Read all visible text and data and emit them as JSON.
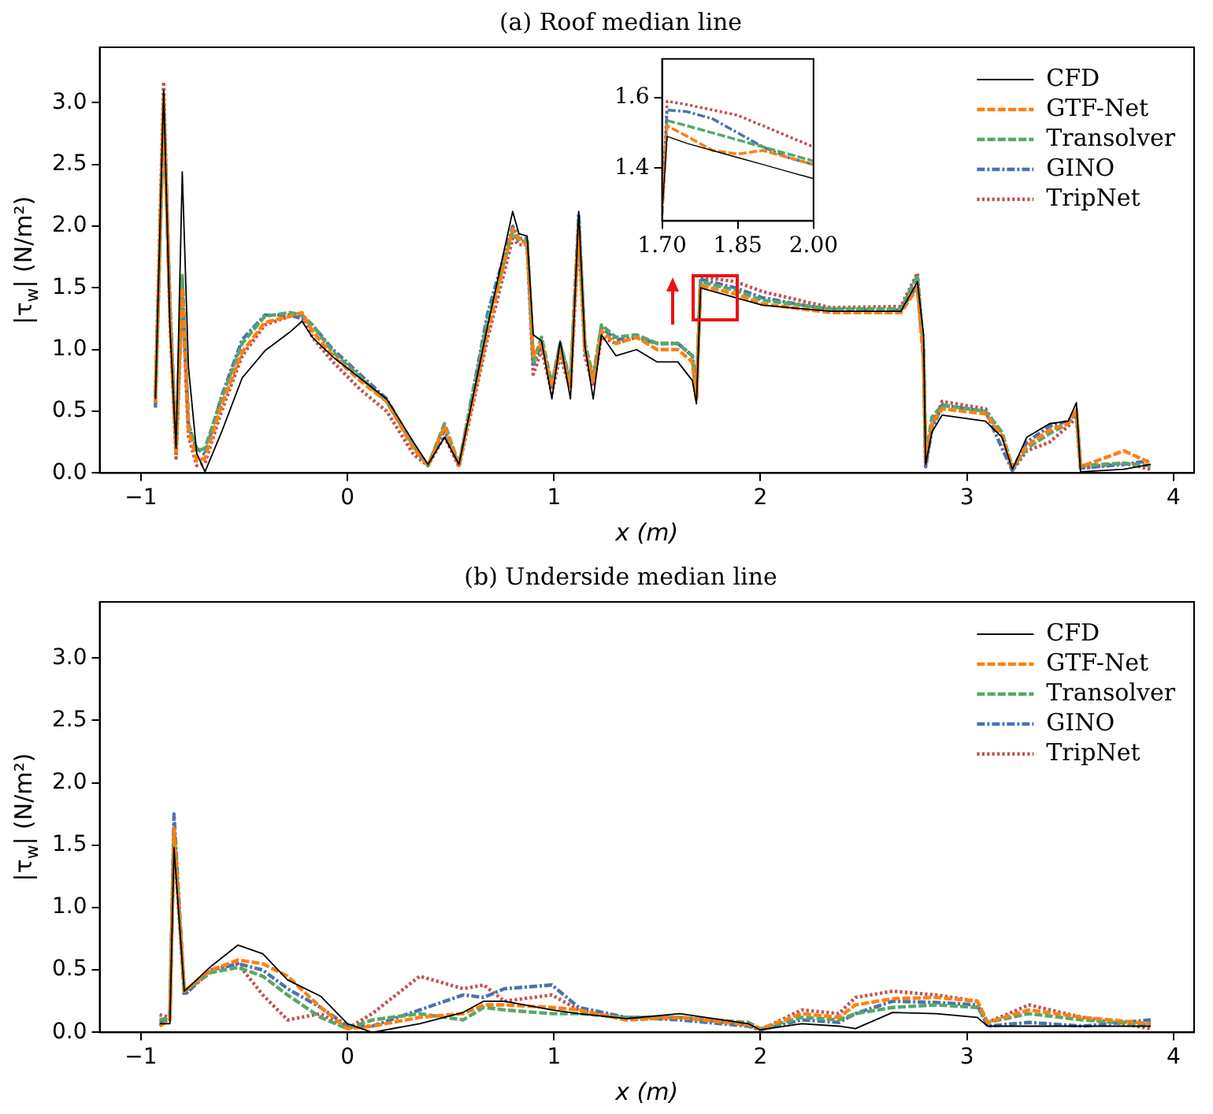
{
  "chart_data": [
    {
      "type": "line",
      "title": "(a) Roof median line",
      "xlabel": "x (m)",
      "ylabel": "|τ$_{w}$| (N/m²)",
      "legend": "top right",
      "xlim": [
        -1.2,
        4.1
      ],
      "ylim": [
        0,
        3.45
      ],
      "xticks": [
        {
          "value": -1,
          "label": "−1"
        },
        0,
        1,
        2,
        3,
        4
      ],
      "yticks": [
        {
          "value": 0,
          "label": "0.0"
        },
        0.5,
        {
          "value": 1,
          "label": "1.0"
        },
        1.5,
        {
          "value": 2,
          "label": "2.0"
        },
        2.5,
        {
          "value": 3,
          "label": "3.0"
        }
      ],
      "x": [
        -0.93,
        -0.89,
        -0.86,
        -0.83,
        -0.8,
        -0.77,
        -0.73,
        -0.69,
        -0.61,
        -0.51,
        -0.4,
        -0.28,
        -0.22,
        -0.17,
        -0.07,
        0.06,
        0.19,
        0.32,
        0.39,
        0.47,
        0.54,
        0.68,
        0.8,
        0.83,
        0.87,
        0.9,
        0.94,
        0.99,
        1.03,
        1.08,
        1.12,
        1.15,
        1.19,
        1.23,
        1.3,
        1.4,
        1.5,
        1.6,
        1.67,
        1.69,
        1.71,
        1.88,
        2.01,
        2.34,
        2.68,
        2.76,
        2.79,
        2.8,
        2.83,
        2.88,
        3.09,
        3.17,
        3.22,
        3.29,
        3.4,
        3.49,
        3.53,
        3.55,
        3.76,
        3.89
      ],
      "series": [
        {
          "name": "CFD",
          "color": "#000000",
          "line_style": "solid",
          "values": [
            0.6,
            3.1,
            1.2,
            0.2,
            2.44,
            0.86,
            0.16,
            0.01,
            0.33,
            0.77,
            0.99,
            1.14,
            1.23,
            1.1,
            0.94,
            0.77,
            0.6,
            0.25,
            0.07,
            0.29,
            0.07,
            1.2,
            2.12,
            1.94,
            1.92,
            1.12,
            1.07,
            0.6,
            1.07,
            0.6,
            2.12,
            1.03,
            0.6,
            1.12,
            0.95,
            1.0,
            0.9,
            0.9,
            0.75,
            0.56,
            1.5,
            1.42,
            1.36,
            1.31,
            1.31,
            1.55,
            1.12,
            0.07,
            0.33,
            0.47,
            0.42,
            0.29,
            0.03,
            0.29,
            0.4,
            0.42,
            0.57,
            0.01,
            0.03,
            0.07
          ]
        },
        {
          "name": "GTF-Net",
          "color": "#ff7f0e",
          "line_style": "dashed",
          "values": [
            0.57,
            3.05,
            1.3,
            0.15,
            1.5,
            0.35,
            0.1,
            0.12,
            0.55,
            0.98,
            1.22,
            1.27,
            1.3,
            1.15,
            0.95,
            0.75,
            0.58,
            0.2,
            0.06,
            0.38,
            0.06,
            1.15,
            1.98,
            1.9,
            1.85,
            0.95,
            1.05,
            0.7,
            1.0,
            0.7,
            2.0,
            1.0,
            0.75,
            1.15,
            1.05,
            1.1,
            1.0,
            1.0,
            0.9,
            0.6,
            1.52,
            1.45,
            1.37,
            1.3,
            1.3,
            1.5,
            0.9,
            0.1,
            0.4,
            0.52,
            0.48,
            0.3,
            0.05,
            0.22,
            0.35,
            0.4,
            0.52,
            0.05,
            0.18,
            0.08
          ]
        },
        {
          "name": "Transolver",
          "color": "#55a868",
          "line_style": "dashed",
          "values": [
            0.62,
            2.9,
            1.4,
            0.2,
            1.6,
            0.4,
            0.18,
            0.2,
            0.6,
            1.05,
            1.27,
            1.3,
            1.28,
            1.2,
            0.98,
            0.78,
            0.58,
            0.22,
            0.06,
            0.4,
            0.07,
            1.25,
            1.95,
            1.88,
            1.88,
            0.9,
            1.1,
            0.72,
            1.05,
            0.75,
            2.05,
            1.05,
            0.78,
            1.2,
            1.1,
            1.12,
            1.05,
            1.05,
            0.95,
            0.65,
            1.55,
            1.48,
            1.4,
            1.33,
            1.33,
            1.6,
            1.0,
            0.12,
            0.45,
            0.55,
            0.5,
            0.33,
            0.04,
            0.2,
            0.32,
            0.4,
            0.5,
            0.06,
            0.08,
            0.06
          ]
        },
        {
          "name": "GINO",
          "color": "#4c72b0",
          "line_style": "dashdot",
          "values": [
            0.53,
            3.0,
            1.35,
            0.18,
            1.55,
            0.38,
            0.2,
            0.15,
            0.62,
            1.08,
            1.28,
            1.28,
            1.25,
            1.2,
            1.0,
            0.8,
            0.6,
            0.22,
            0.06,
            0.35,
            0.06,
            1.3,
            2.0,
            1.9,
            1.9,
            0.88,
            1.05,
            0.7,
            1.05,
            0.72,
            2.1,
            1.0,
            0.75,
            1.18,
            1.08,
            1.1,
            1.05,
            1.05,
            0.95,
            0.62,
            1.57,
            1.5,
            1.42,
            1.32,
            1.32,
            1.52,
            0.95,
            0.05,
            0.35,
            0.55,
            0.5,
            0.2,
            0.02,
            0.25,
            0.38,
            0.42,
            0.5,
            0.04,
            0.07,
            0.1
          ]
        },
        {
          "name": "TripNet",
          "color": "#c44e52",
          "line_style": "dotted",
          "values": [
            0.65,
            3.17,
            1.25,
            0.12,
            1.45,
            0.3,
            0.06,
            0.08,
            0.5,
            0.95,
            1.2,
            1.27,
            1.28,
            1.1,
            0.9,
            0.68,
            0.5,
            0.15,
            0.06,
            0.3,
            0.05,
            1.1,
            1.9,
            1.85,
            1.85,
            0.8,
            1.0,
            0.65,
            0.95,
            0.68,
            1.95,
            0.95,
            0.7,
            1.1,
            1.05,
            1.1,
            1.05,
            1.05,
            0.95,
            0.6,
            1.59,
            1.55,
            1.47,
            1.34,
            1.35,
            1.62,
            1.0,
            0.06,
            0.38,
            0.58,
            0.52,
            0.3,
            0.02,
            0.18,
            0.25,
            0.38,
            0.45,
            0.04,
            0.08,
            0.03
          ]
        }
      ]
    },
    {
      "type": "line",
      "xlim": [
        1.7,
        2.0
      ],
      "ylim": [
        1.25,
        1.71
      ],
      "xticks": [
        {
          "value": 1.7,
          "label": "1.70"
        },
        1.85,
        {
          "value": 2,
          "label": "2.00"
        }
      ],
      "yticks": [
        1.4,
        1.6
      ],
      "x": [
        1.7,
        1.71,
        1.75,
        1.8,
        1.85,
        1.9,
        1.95,
        2.0
      ],
      "series": [
        {
          "color": "#000000",
          "line_style": "solid",
          "values": [
            1.27,
            1.49,
            1.47,
            1.45,
            1.43,
            1.41,
            1.39,
            1.37
          ]
        },
        {
          "color": "#ff7f0e",
          "line_style": "dashed",
          "values": [
            1.27,
            1.52,
            1.49,
            1.45,
            1.44,
            1.45,
            1.43,
            1.41
          ]
        },
        {
          "color": "#55a868",
          "line_style": "dashed",
          "values": [
            1.27,
            1.535,
            1.52,
            1.5,
            1.48,
            1.46,
            1.44,
            1.42
          ]
        },
        {
          "color": "#4c72b0",
          "line_style": "dashdot",
          "values": [
            1.27,
            1.565,
            1.56,
            1.54,
            1.5,
            1.46,
            1.43,
            1.41
          ]
        },
        {
          "color": "#c44e52",
          "line_style": "dotted",
          "values": [
            1.27,
            1.59,
            1.58,
            1.565,
            1.55,
            1.52,
            1.49,
            1.46
          ]
        }
      ]
    },
    {
      "type": "line",
      "title": "(b) Underside median line",
      "xlabel": "x (m)",
      "ylabel": "|τ$_{w}$| (N/m²)",
      "legend": "top right",
      "xlim": [
        -1.2,
        4.1
      ],
      "ylim": [
        0,
        3.45
      ],
      "xticks": [
        {
          "value": -1,
          "label": "−1"
        },
        0,
        1,
        2,
        3,
        4
      ],
      "yticks": [
        {
          "value": 0,
          "label": "0.0"
        },
        0.5,
        {
          "value": 1,
          "label": "1.0"
        },
        1.5,
        {
          "value": 2,
          "label": "2.0"
        },
        2.5,
        {
          "value": 3,
          "label": "3.0"
        }
      ],
      "x": [
        -0.91,
        -0.86,
        -0.84,
        -0.79,
        -0.66,
        -0.53,
        -0.41,
        -0.29,
        -0.13,
        0.0,
        0.12,
        0.35,
        0.56,
        0.66,
        0.76,
        0.99,
        1.12,
        1.35,
        1.61,
        1.94,
        2.0,
        2.2,
        2.38,
        2.46,
        2.64,
        2.85,
        3.05,
        3.1,
        3.3,
        3.56,
        3.89
      ],
      "series": [
        {
          "name": "CFD",
          "color": "#000000",
          "line_style": "solid",
          "values": [
            0.07,
            0.07,
            1.48,
            0.33,
            0.53,
            0.7,
            0.63,
            0.42,
            0.29,
            0.07,
            0.0,
            0.07,
            0.16,
            0.25,
            0.25,
            0.18,
            0.15,
            0.11,
            0.15,
            0.07,
            0.02,
            0.07,
            0.05,
            0.03,
            0.16,
            0.15,
            0.12,
            0.05,
            0.05,
            0.05,
            0.05
          ]
        },
        {
          "name": "GTF-Net",
          "color": "#ff7f0e",
          "line_style": "dashed",
          "values": [
            0.05,
            0.1,
            1.65,
            0.33,
            0.5,
            0.58,
            0.55,
            0.45,
            0.2,
            0.03,
            0.05,
            0.12,
            0.15,
            0.22,
            0.22,
            0.2,
            0.18,
            0.1,
            0.12,
            0.06,
            0.03,
            0.15,
            0.12,
            0.22,
            0.27,
            0.28,
            0.25,
            0.08,
            0.18,
            0.12,
            0.07
          ]
        },
        {
          "name": "Transolver",
          "color": "#55a868",
          "line_style": "dashed",
          "values": [
            0.1,
            0.12,
            1.6,
            0.33,
            0.48,
            0.52,
            0.45,
            0.3,
            0.12,
            0.03,
            0.1,
            0.15,
            0.1,
            0.2,
            0.18,
            0.15,
            0.15,
            0.12,
            0.12,
            0.08,
            0.03,
            0.12,
            0.1,
            0.15,
            0.2,
            0.22,
            0.2,
            0.08,
            0.15,
            0.1,
            0.06
          ]
        },
        {
          "name": "GINO",
          "color": "#4c72b0",
          "line_style": "dashdot",
          "values": [
            0.08,
            0.1,
            1.75,
            0.3,
            0.5,
            0.55,
            0.5,
            0.35,
            0.2,
            0.05,
            0.05,
            0.18,
            0.3,
            0.28,
            0.35,
            0.38,
            0.2,
            0.12,
            0.1,
            0.05,
            0.02,
            0.1,
            0.08,
            0.15,
            0.25,
            0.24,
            0.22,
            0.05,
            0.08,
            0.05,
            0.1
          ]
        },
        {
          "name": "TripNet",
          "color": "#c44e52",
          "line_style": "dotted",
          "values": [
            0.14,
            0.12,
            1.55,
            0.3,
            0.5,
            0.55,
            0.3,
            0.1,
            0.15,
            0.03,
            0.15,
            0.45,
            0.35,
            0.38,
            0.25,
            0.3,
            0.18,
            0.12,
            0.12,
            0.06,
            0.02,
            0.18,
            0.15,
            0.28,
            0.33,
            0.3,
            0.25,
            0.08,
            0.22,
            0.12,
            0.03
          ]
        }
      ]
    }
  ]
}
